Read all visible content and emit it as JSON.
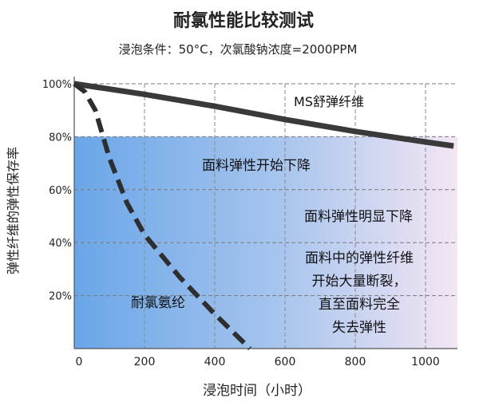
{
  "chart_data": {
    "type": "line",
    "title": "耐氯性能比较测试",
    "subtitle": "浸泡条件：50°C，次氯酸钠浓度=2000PPM",
    "xlabel": "浸泡时间（小时）",
    "ylabel": "弹性纤维的弹性保存率",
    "xlim": [
      0,
      1100
    ],
    "ylim": [
      0,
      100
    ],
    "x_ticks": [
      0,
      200,
      400,
      600,
      800,
      1000
    ],
    "y_ticks": [
      20,
      40,
      60,
      80,
      100
    ],
    "x_tick_labels": [
      "0",
      "200",
      "400",
      "600",
      "800",
      "1000"
    ],
    "y_tick_labels": [
      "20%",
      "40%",
      "60%",
      "80%",
      "100%"
    ],
    "grid": true,
    "series": [
      {
        "name": "MS舒弹纤维",
        "style": "solid",
        "color": "#3a3a3a",
        "x": [
          0,
          200,
          400,
          600,
          800,
          1000,
          1080
        ],
        "y": [
          100,
          96,
          91.5,
          86.5,
          82,
          78,
          76.5
        ]
      },
      {
        "name": "耐氯氨纶",
        "style": "dashed",
        "color": "#2e2e2e",
        "x": [
          0,
          30,
          60,
          100,
          150,
          200,
          300,
          400,
          500
        ],
        "y": [
          100,
          97,
          90,
          72,
          55,
          43,
          27,
          13,
          0
        ]
      }
    ],
    "zones": [
      {
        "from": 60,
        "to": 80,
        "label": "面料弹性开始下降"
      },
      {
        "from": 40,
        "to": 60,
        "label": "面料弹性明显下降"
      },
      {
        "from": 0,
        "to": 40,
        "label_lines": [
          "面料中的弹性纤维",
          "开始大量断裂，",
          "直至面料完全",
          "失去弹性"
        ]
      }
    ]
  }
}
